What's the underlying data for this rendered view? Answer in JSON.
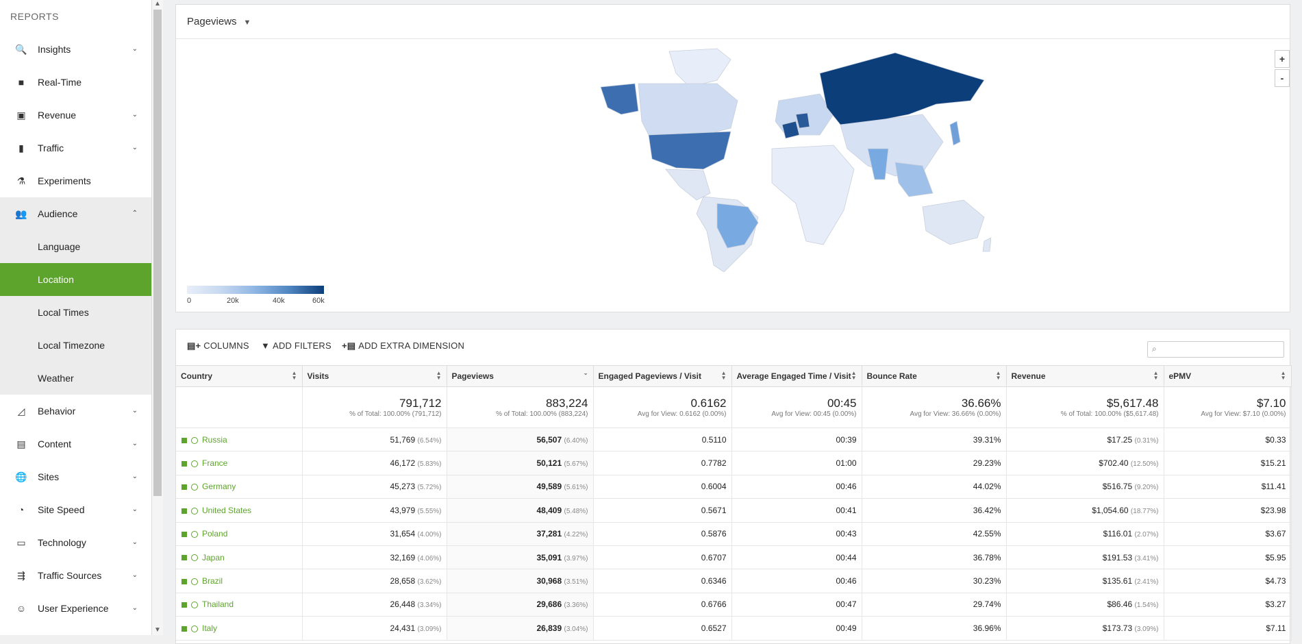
{
  "sidebar": {
    "heading": "REPORTS",
    "items": [
      {
        "label": "Insights",
        "icon": "search-icon",
        "glyph": "🔍",
        "chevron": "⌄"
      },
      {
        "label": "Real-Time",
        "icon": "video-icon",
        "glyph": "■",
        "chevron": ""
      },
      {
        "label": "Revenue",
        "icon": "money-icon",
        "glyph": "▣",
        "chevron": "⌄"
      },
      {
        "label": "Traffic",
        "icon": "traffic-light-icon",
        "glyph": "▮",
        "chevron": "⌄"
      },
      {
        "label": "Experiments",
        "icon": "flask-icon",
        "glyph": "⚗",
        "chevron": ""
      },
      {
        "label": "Audience",
        "icon": "people-icon",
        "glyph": "👥",
        "chevron": "⌃"
      }
    ],
    "audience_sub": [
      "Language",
      "Location",
      "Local Times",
      "Local Timezone",
      "Weather"
    ],
    "lower_items": [
      {
        "label": "Behavior",
        "icon": "chart-area-icon",
        "glyph": "◿",
        "chevron": "⌄"
      },
      {
        "label": "Content",
        "icon": "book-icon",
        "glyph": "▤",
        "chevron": "⌄"
      },
      {
        "label": "Sites",
        "icon": "globe-icon",
        "glyph": "🌐",
        "chevron": "⌄"
      },
      {
        "label": "Site Speed",
        "icon": "speedometer-icon",
        "glyph": "◔",
        "chevron": "⌄"
      },
      {
        "label": "Technology",
        "icon": "devices-icon",
        "glyph": "▭",
        "chevron": "⌄"
      },
      {
        "label": "Traffic Sources",
        "icon": "sources-icon",
        "glyph": "⇶",
        "chevron": "⌄"
      },
      {
        "label": "User Experience",
        "icon": "smile-icon",
        "glyph": "☺",
        "chevron": "⌄"
      }
    ]
  },
  "map": {
    "metric_select": "Pageviews",
    "zoom_in": "+",
    "zoom_out": "-",
    "legend_ticks": [
      "0",
      "20k",
      "40k",
      "60k"
    ]
  },
  "toolbar": {
    "columns": "COLUMNS",
    "filters": "ADD FILTERS",
    "dimension": "ADD EXTRA DIMENSION",
    "search_placeholder": ""
  },
  "table": {
    "headers": [
      "Country",
      "Visits",
      "Pageviews",
      "Engaged Pageviews / Visit",
      "Average Engaged Time / Visit",
      "Bounce Rate",
      "Revenue",
      "ePMV"
    ],
    "totals": [
      {
        "big": "791,712",
        "small": "% of Total: 100.00% (791,712)"
      },
      {
        "big": "883,224",
        "small": "% of Total: 100.00% (883,224)"
      },
      {
        "big": "0.6162",
        "small": "Avg for View: 0.6162 (0.00%)"
      },
      {
        "big": "00:45",
        "small": "Avg for View: 00:45 (0.00%)"
      },
      {
        "big": "36.66%",
        "small": "Avg for View: 36.66% (0.00%)"
      },
      {
        "big": "$5,617.48",
        "small": "% of Total: 100.00% ($5,617.48)"
      },
      {
        "big": "$7.10",
        "small": "Avg for View: $7.10 (0.00%)"
      }
    ],
    "rows": [
      {
        "country": "Russia",
        "visits": "51,769",
        "visits_pct": "(6.54%)",
        "pv": "56,507",
        "pv_pct": "(6.40%)",
        "epv": "0.5110",
        "time": "00:39",
        "bounce": "39.31%",
        "rev": "$17.25",
        "rev_pct": "(0.31%)",
        "epmv": "$0.33"
      },
      {
        "country": "France",
        "visits": "46,172",
        "visits_pct": "(5.83%)",
        "pv": "50,121",
        "pv_pct": "(5.67%)",
        "epv": "0.7782",
        "time": "01:00",
        "bounce": "29.23%",
        "rev": "$702.40",
        "rev_pct": "(12.50%)",
        "epmv": "$15.21"
      },
      {
        "country": "Germany",
        "visits": "45,273",
        "visits_pct": "(5.72%)",
        "pv": "49,589",
        "pv_pct": "(5.61%)",
        "epv": "0.6004",
        "time": "00:46",
        "bounce": "44.02%",
        "rev": "$516.75",
        "rev_pct": "(9.20%)",
        "epmv": "$11.41"
      },
      {
        "country": "United States",
        "visits": "43,979",
        "visits_pct": "(5.55%)",
        "pv": "48,409",
        "pv_pct": "(5.48%)",
        "epv": "0.5671",
        "time": "00:41",
        "bounce": "36.42%",
        "rev": "$1,054.60",
        "rev_pct": "(18.77%)",
        "epmv": "$23.98"
      },
      {
        "country": "Poland",
        "visits": "31,654",
        "visits_pct": "(4.00%)",
        "pv": "37,281",
        "pv_pct": "(4.22%)",
        "epv": "0.5876",
        "time": "00:43",
        "bounce": "42.55%",
        "rev": "$116.01",
        "rev_pct": "(2.07%)",
        "epmv": "$3.67"
      },
      {
        "country": "Japan",
        "visits": "32,169",
        "visits_pct": "(4.06%)",
        "pv": "35,091",
        "pv_pct": "(3.97%)",
        "epv": "0.6707",
        "time": "00:44",
        "bounce": "36.78%",
        "rev": "$191.53",
        "rev_pct": "(3.41%)",
        "epmv": "$5.95"
      },
      {
        "country": "Brazil",
        "visits": "28,658",
        "visits_pct": "(3.62%)",
        "pv": "30,968",
        "pv_pct": "(3.51%)",
        "epv": "0.6346",
        "time": "00:46",
        "bounce": "30.23%",
        "rev": "$135.61",
        "rev_pct": "(2.41%)",
        "epmv": "$4.73"
      },
      {
        "country": "Thailand",
        "visits": "26,448",
        "visits_pct": "(3.34%)",
        "pv": "29,686",
        "pv_pct": "(3.36%)",
        "epv": "0.6766",
        "time": "00:47",
        "bounce": "29.74%",
        "rev": "$86.46",
        "rev_pct": "(1.54%)",
        "epmv": "$3.27"
      },
      {
        "country": "Italy",
        "visits": "24,431",
        "visits_pct": "(3.09%)",
        "pv": "26,839",
        "pv_pct": "(3.04%)",
        "epv": "0.6527",
        "time": "00:49",
        "bounce": "36.96%",
        "rev": "$173.73",
        "rev_pct": "(3.09%)",
        "epmv": "$7.11"
      }
    ]
  },
  "colors": {
    "accent": "#5da42c",
    "map_dark": "#0c3e7a",
    "map_light": "#e8eef9"
  }
}
